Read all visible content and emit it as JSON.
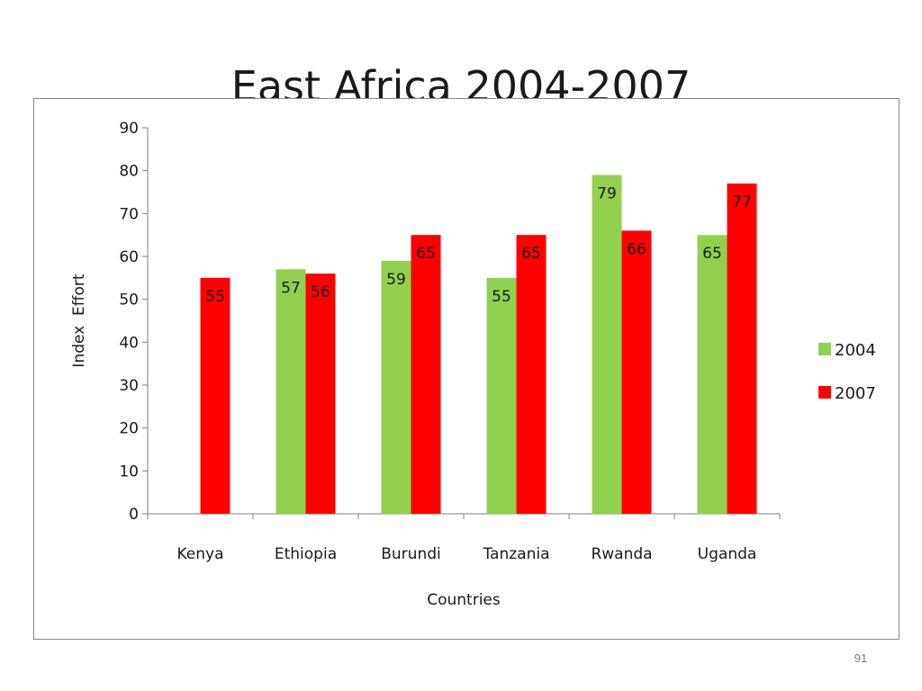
{
  "slide": {
    "title": "East Africa 2004-2007",
    "page_number": "91"
  },
  "chart_data": {
    "type": "bar",
    "title": "",
    "xlabel": "Countries",
    "ylabel": "Index  Effort",
    "ylim": [
      0,
      90
    ],
    "yticks": [
      0,
      10,
      20,
      30,
      40,
      50,
      60,
      70,
      80,
      90
    ],
    "categories": [
      "Kenya",
      "Ethiopia",
      "Burundi",
      "Tanzania",
      "Rwanda",
      "Uganda"
    ],
    "series": [
      {
        "name": "2004",
        "color": "#92d050",
        "values": [
          null,
          57,
          59,
          55,
          79,
          65
        ]
      },
      {
        "name": "2007",
        "color": "#ff0000",
        "values": [
          55,
          56,
          65,
          65,
          66,
          77
        ]
      }
    ],
    "data_labels": true,
    "legend_position": "right",
    "grid": false
  }
}
